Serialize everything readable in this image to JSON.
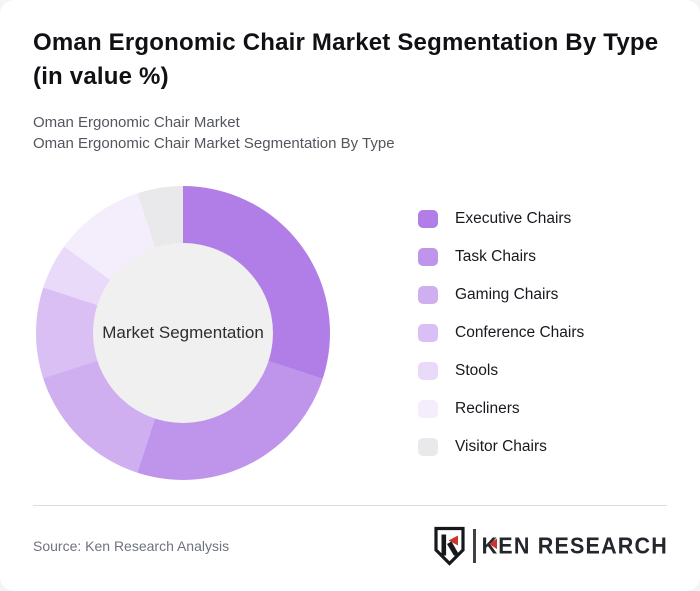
{
  "header": {
    "title": "Oman Ergonomic Chair Market Segmentation By Type (in value %)",
    "title_line1": "Oman Ergonomic Chair Market Segmentation By Type",
    "title_line2": "(in value %)",
    "subtitle_line1": "Oman Ergonomic Chair Market",
    "subtitle_line2": "Oman Ergonomic Chair Market Segmentation By Type"
  },
  "chart_data": {
    "type": "pie",
    "subtype": "donut",
    "title": "Oman Ergonomic Chair Market Segmentation By Type (in value %)",
    "center_label": "Market Segmentation",
    "unit": "%",
    "start_angle_deg": 0,
    "direction": "clockwise",
    "legend_position": "right",
    "categories": [
      "Executive Chairs",
      "Task Chairs",
      "Gaming Chairs",
      "Conference Chairs",
      "Stools",
      "Recliners",
      "Visitor Chairs"
    ],
    "values": [
      30,
      25,
      15,
      10,
      5,
      10,
      5
    ],
    "colors": [
      "#b17de7",
      "#bf94eb",
      "#d0aff1",
      "#dabff4",
      "#e9daf9",
      "#f3edfc",
      "#e9e9ec"
    ],
    "inner_circle_color": "#f0f0f1",
    "inner_radius_ratio": 0.61
  },
  "footer": {
    "source": "Source: Ken Research Analysis",
    "logo": {
      "brand": "KEN RESEARCH",
      "accent_red": "#c8372d",
      "ink": "#17181b"
    }
  }
}
